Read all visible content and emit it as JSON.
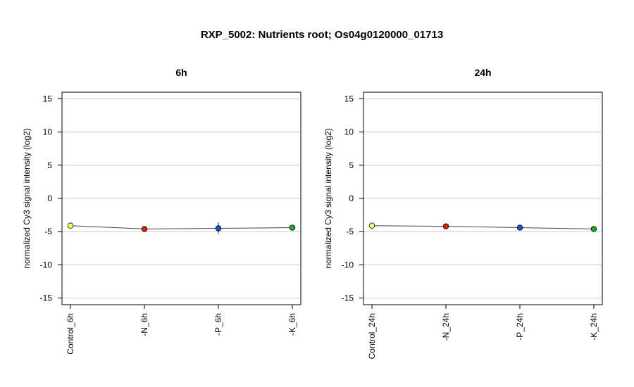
{
  "title": "RXP_5002: Nutrients root; Os04g0120000_01713",
  "chart_data": [
    {
      "type": "line",
      "title": "6h",
      "ylabel": "normalized Cy3 signal intensity (log2)",
      "ylim": [
        -16,
        16
      ],
      "yticks": [
        15,
        10,
        5,
        0,
        -5,
        -10,
        -15
      ],
      "grid": true,
      "categories": [
        "Control_6h",
        "-N_6h",
        "-P_6h",
        "-K_6h"
      ],
      "values": [
        -4.1,
        -4.6,
        -4.5,
        -4.4
      ],
      "errors": [
        0.35,
        0.2,
        0.9,
        0.2
      ],
      "point_colors": [
        "#ffff66",
        "#dd2200",
        "#1155dd",
        "#22aa22"
      ]
    },
    {
      "type": "line",
      "title": "24h",
      "ylabel": "normalized Cy3 signal intensity (log2)",
      "ylim": [
        -16,
        16
      ],
      "yticks": [
        15,
        10,
        5,
        0,
        -5,
        -10,
        -15
      ],
      "grid": true,
      "categories": [
        "Control_24h",
        "-N_24h",
        "-P_24h",
        "-K_24h"
      ],
      "values": [
        -4.1,
        -4.2,
        -4.4,
        -4.6
      ],
      "errors": [
        0.2,
        0.35,
        0.15,
        0.15
      ],
      "point_colors": [
        "#ffff66",
        "#dd2200",
        "#1155dd",
        "#22aa22"
      ]
    }
  ]
}
